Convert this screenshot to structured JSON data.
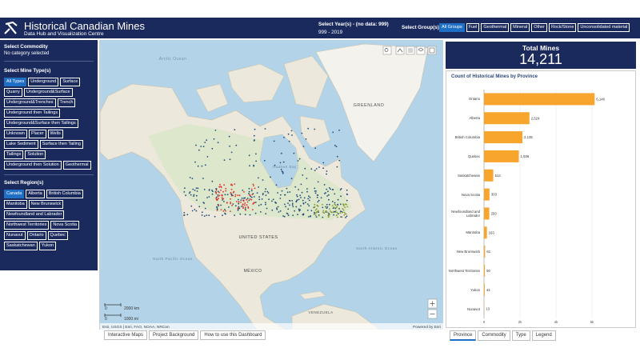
{
  "header": {
    "title": "Historical Canadian Mines",
    "subtitle": "Data Hub and Visualization Centre",
    "year_label": "Select Year(s) - (no data: 999)",
    "year_range": "999 - 2019",
    "group_label": "Select Group(s)",
    "groups": [
      "All Groups",
      "Fuel",
      "Geothermal",
      "Mineral",
      "Other",
      "Rock/Stone",
      "Unconsolidated material"
    ],
    "groups_active": 0
  },
  "sidebar": {
    "commodity_label": "Select Commodity",
    "commodity_value": "No category selected",
    "mine_type_label": "Select Mine Type(s)",
    "mine_types": [
      "All Types",
      "Underground",
      "Surface",
      "Quarry",
      "Underground&Surface",
      "Underground&Trenches",
      "Trench",
      "Underground then Tailings",
      "Underground&Surface then Tailings",
      "Unknown",
      "Placer",
      "Wells",
      "Lake Sediment",
      "Surface then Tailing",
      "Tailings",
      "Solution",
      "Underground then Solution",
      "Geothermal"
    ],
    "mine_types_active": 0,
    "region_label": "Select Region(s)",
    "regions": [
      "Canada",
      "Alberta",
      "British Columbia",
      "Manitoba",
      "New Brunswick",
      "Newfoundland and Labrador",
      "Northwest Territories",
      "Nova Scotia",
      "Nunavut",
      "Ontario",
      "Quebec",
      "Saskatchewan",
      "Yukon"
    ],
    "regions_active": 0
  },
  "map": {
    "labels": [
      "Arctic Ocean",
      "GREENLAND",
      "Hudson Bay",
      "UNITED STATES",
      "MÉXICO",
      "North Pacific Ocean",
      "North Atlantic Ocean",
      "VENEZUELA"
    ],
    "scale_zero": "0",
    "scale_km": "2000 km",
    "scale_mi": "1000 mi",
    "attribution": "Esri, USGS | Esri, FAO, NOAA, NRCan",
    "powered_by": "Powered by Esri"
  },
  "summary": {
    "label": "Total Mines",
    "value": "14,211"
  },
  "chart_data": {
    "type": "bar",
    "orientation": "horizontal",
    "title": "Count of Historical Mines by Province",
    "categories": [
      "Ontario",
      "Alberta",
      "British Columbia",
      "Quebec",
      "Saskatchewan",
      "Nova Scotia",
      "Newfoundland and Labrador",
      "Manitoba",
      "New Brunswick",
      "Northwest Territories",
      "Yukon",
      "Nunavut"
    ],
    "values": [
      6146,
      2524,
      2135,
      1936,
      514,
      303,
      293,
      163,
      61,
      50,
      41,
      13
    ],
    "value_labels": [
      "6,146",
      "2,524",
      "2,135",
      "1,936",
      "514",
      "303",
      "293",
      "163",
      "61",
      "50",
      "41",
      "13"
    ],
    "color": "#f7a52c",
    "xlim": [
      0,
      8000
    ],
    "xticks": [
      0,
      {
        "value": 2000,
        "label": "2k"
      },
      {
        "value": 4000,
        "label": "4k"
      },
      {
        "value": 6000,
        "label": "6k"
      }
    ],
    "grid": true
  },
  "tabs": {
    "left": [
      "Interactive Maps",
      "Project Background",
      "How to use this Dashboard"
    ],
    "right": [
      "Province",
      "Commodity",
      "Type",
      "Legend"
    ],
    "right_active": 0
  }
}
